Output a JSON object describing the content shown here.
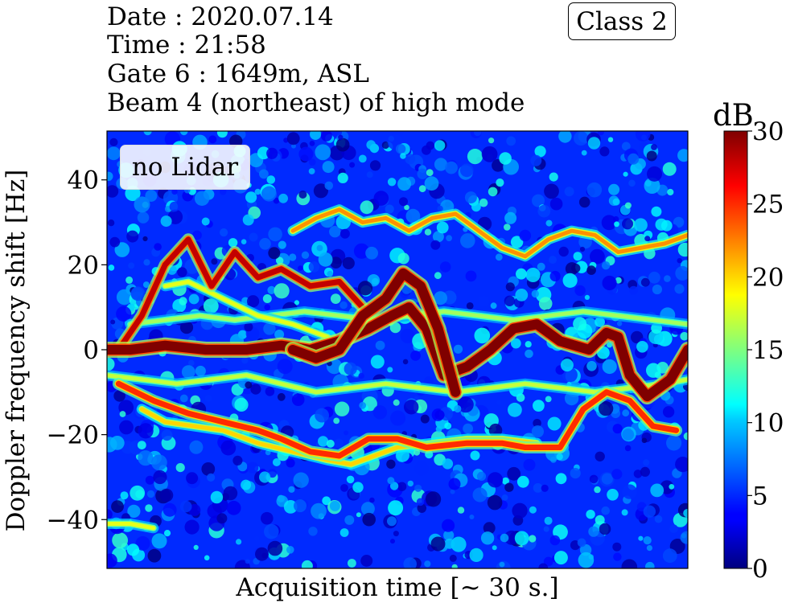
{
  "header": {
    "date": "Date : 2020.07.14",
    "time": "Time : 21:58",
    "gate": "Gate 6 : 1649m, ASL",
    "beam": "Beam 4 (northeast) of high mode",
    "class_label": "Class 2"
  },
  "legend": {
    "label": "no Lidar"
  },
  "colorbar": {
    "unit": "dB",
    "colormap": "jet",
    "range": [
      0,
      30
    ],
    "ticks": [
      "0",
      "5",
      "10",
      "15",
      "20",
      "25",
      "30"
    ]
  },
  "chart_data": {
    "type": "heatmap",
    "xlabel": "Acquisition time [~ 30 s.]",
    "ylabel": "Doppler frequency shift [Hz]",
    "ylim": [
      -51.5,
      51.5
    ],
    "yticks": [
      -40,
      -20,
      0,
      20,
      40
    ],
    "ytick_labels": [
      "−40",
      "−20",
      "0",
      "20",
      "40"
    ],
    "xticks": [],
    "background_level_db": 5,
    "noise_level_db": [
      0,
      13
    ],
    "traces": [
      {
        "level_db": 30,
        "x": [
          0,
          0.04,
          0.1,
          0.17,
          0.24,
          0.3,
          0.35,
          0.4,
          0.45,
          0.49,
          0.52,
          0.55,
          0.58,
          0.62,
          0.66,
          0.7,
          0.74,
          0.78,
          0.83,
          0.86,
          0.88,
          0.9,
          0.93,
          0.97,
          1.0
        ],
        "y": [
          0,
          0,
          1,
          0,
          0,
          1,
          0,
          2,
          5,
          8,
          10,
          5,
          -6,
          -4,
          0,
          5,
          6,
          2,
          0,
          4,
          3,
          -6,
          -11,
          -7,
          0
        ]
      },
      {
        "level_db": 30,
        "x": [
          0.32,
          0.36,
          0.4,
          0.44,
          0.48,
          0.51,
          0.54,
          0.57,
          0.6
        ],
        "y": [
          0,
          -2,
          0,
          8,
          12,
          18,
          15,
          5,
          -10
        ]
      },
      {
        "level_db": 28,
        "x": [
          0.02,
          0.06,
          0.1,
          0.14,
          0.18,
          0.22,
          0.26,
          0.3,
          0.35,
          0.4,
          0.44
        ],
        "y": [
          0,
          8,
          20,
          26,
          15,
          23,
          17,
          19,
          15,
          16,
          10
        ]
      },
      {
        "level_db": 25,
        "x": [
          0.02,
          0.08,
          0.14,
          0.2,
          0.26,
          0.3,
          0.35,
          0.4,
          0.45,
          0.5,
          0.55,
          0.62,
          0.68,
          0.72,
          0.78,
          0.82,
          0.86,
          0.9,
          0.94,
          0.98
        ],
        "y": [
          -8,
          -12,
          -15,
          -17,
          -19,
          -21,
          -24,
          -25,
          -21,
          -21,
          -23,
          -22,
          -22,
          -23,
          -23,
          -14,
          -10,
          -12,
          -18,
          -19
        ]
      },
      {
        "level_db": 22,
        "x": [
          0.32,
          0.36,
          0.4,
          0.44,
          0.48,
          0.52,
          0.56,
          0.6,
          0.64,
          0.68,
          0.72,
          0.76,
          0.8,
          0.84,
          0.88,
          0.92,
          0.96,
          1.0
        ],
        "y": [
          28,
          31,
          33,
          30,
          31,
          28,
          31,
          32,
          28,
          24,
          22,
          26,
          28,
          27,
          23,
          24,
          25,
          27
        ]
      },
      {
        "level_db": 20,
        "x": [
          0.06,
          0.1,
          0.15,
          0.2,
          0.26,
          0.32,
          0.38,
          0.42,
          0.46,
          0.5,
          0.56,
          0.62,
          0.68,
          0.74
        ],
        "y": [
          -14,
          -17,
          -18,
          -19,
          -22,
          -24,
          -26,
          -27,
          -25,
          -23,
          -22,
          -21,
          -21,
          -22
        ]
      },
      {
        "level_db": 18,
        "x": [
          0.1,
          0.14,
          0.2,
          0.26,
          0.32,
          0.38
        ],
        "y": [
          15,
          16,
          12,
          8,
          6,
          3
        ]
      },
      {
        "level_db": 17,
        "x": [
          0.0,
          0.06,
          0.12,
          0.18,
          0.24,
          0.3,
          0.36,
          0.42,
          0.48,
          0.54,
          0.6,
          0.66,
          0.72,
          0.78,
          0.84,
          0.9,
          0.96,
          1.0
        ],
        "y": [
          -6,
          -7,
          -8,
          -7,
          -6,
          -8,
          -10,
          -9,
          -8,
          -9,
          -10,
          -9,
          -8,
          -9,
          -10,
          -9,
          -8,
          -7
        ]
      },
      {
        "level_db": 16,
        "x": [
          0.04,
          0.1,
          0.16,
          0.22,
          0.28,
          0.34,
          0.4,
          0.46,
          0.52,
          0.58,
          0.64,
          0.7,
          0.76,
          0.82,
          0.88,
          0.94,
          1.0
        ],
        "y": [
          6,
          7,
          8,
          7,
          8,
          9,
          8,
          7,
          8,
          9,
          8,
          7,
          8,
          9,
          8,
          7,
          6
        ]
      },
      {
        "level_db": 18,
        "x": [
          0.0,
          0.04,
          0.08
        ],
        "y": [
          -41,
          -41,
          -42
        ]
      }
    ]
  }
}
